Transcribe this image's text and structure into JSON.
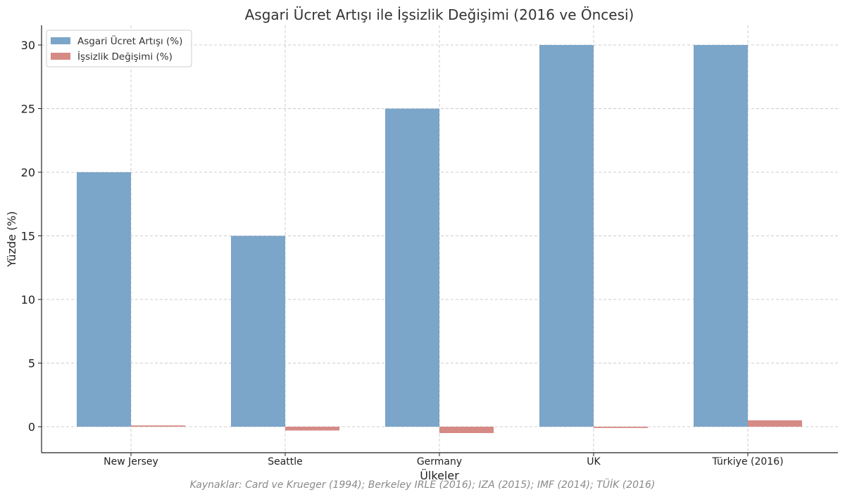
{
  "chart_data": {
    "type": "bar",
    "title": "Asgari Ücret Artışı ile İşsizlik Değişimi (2016 ve Öncesi)",
    "xlabel": "Ülkeler",
    "ylabel": "Yüzde (%)",
    "categories": [
      "New Jersey",
      "Seattle",
      "Germany",
      "UK",
      "Türkiye (2016)"
    ],
    "series": [
      {
        "name": "Asgari Ücret Artışı (%)",
        "values": [
          20,
          15,
          25,
          30,
          30
        ],
        "color": "#7ba5c9"
      },
      {
        "name": "İşsizlik Değişimi (%)",
        "values": [
          0.1,
          -0.3,
          -0.5,
          -0.1,
          0.5
        ],
        "color": "#d68a85"
      }
    ],
    "ylim": [
      -2,
      31.5
    ],
    "yticks": [
      0,
      5,
      10,
      15,
      20,
      25,
      30
    ],
    "grid": true,
    "legend_position": "top-left"
  },
  "footnote": "Kaynaklar: Card ve Krueger (1994); Berkeley IRLE (2016); IZA (2015); IMF (2014); TÜİK (2016)"
}
